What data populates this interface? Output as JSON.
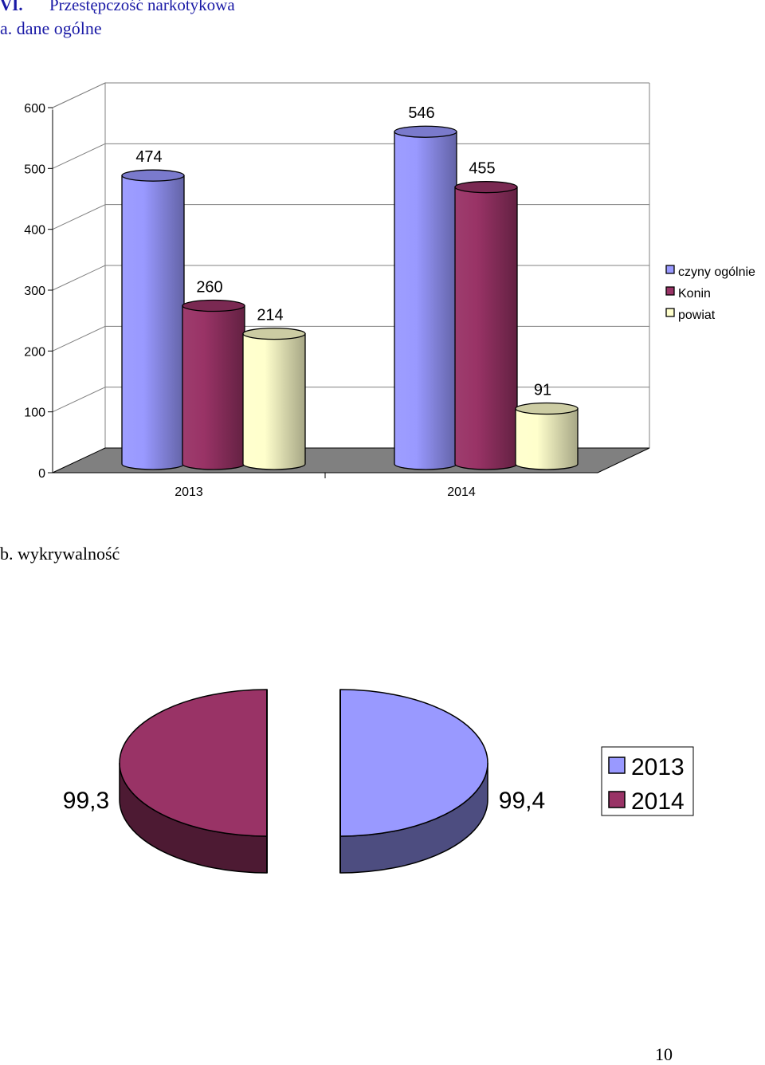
{
  "heading": {
    "section_number": "VI.",
    "section_title": "Przestępczość narkotykowa",
    "sub_a": "a. dane ogólne",
    "sub_b": "b. wykrywalność"
  },
  "page_number": "10",
  "colors": {
    "czyny": "#9999ff",
    "konin": "#993366",
    "powiat": "#ffffcc",
    "floor": "#808080"
  },
  "chart_data": [
    {
      "type": "bar",
      "style": "3d-cylinder",
      "title": "",
      "categories": [
        "2013",
        "2014"
      ],
      "series": [
        {
          "name": "czyny ogólnie",
          "values": [
            474,
            546
          ],
          "labels": [
            "474",
            "546"
          ]
        },
        {
          "name": "Konin",
          "values": [
            260,
            455
          ],
          "labels": [
            "260",
            "455"
          ]
        },
        {
          "name": "powiat",
          "values": [
            214,
            91
          ],
          "labels": [
            "214",
            "91"
          ]
        }
      ],
      "yticks": [
        "0",
        "100",
        "200",
        "300",
        "400",
        "500",
        "600"
      ],
      "ylim": [
        0,
        600
      ],
      "grid": true,
      "legend": "right"
    },
    {
      "type": "pie",
      "style": "3d-exploded",
      "title": "",
      "categories": [
        "2013",
        "2014"
      ],
      "values": [
        99.4,
        99.3
      ],
      "labels": [
        "99,4",
        "99,3"
      ],
      "legend": "right"
    }
  ]
}
